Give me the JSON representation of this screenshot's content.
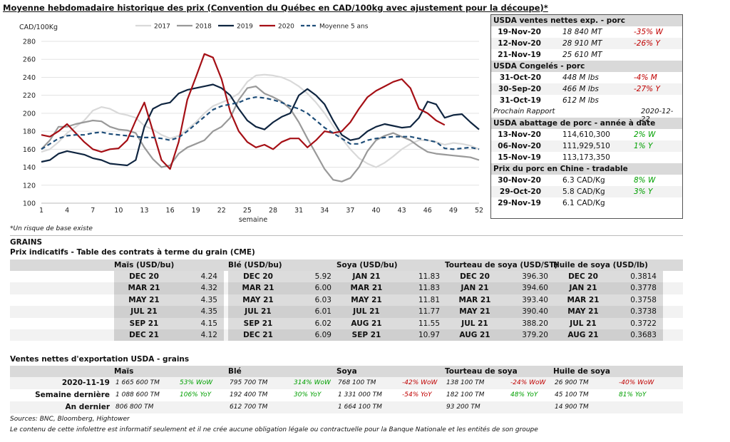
{
  "title": "Moyenne hebdomadaire historique des prix (Convention du Québec en CAD/100kg avec ajustement pour la découpe)*",
  "footnote": "*Un risque de base existe",
  "chart_data": {
    "type": "line",
    "ylabel": "CAD/100Kg",
    "xlabel": "semaine",
    "ylim": [
      100,
      280
    ],
    "yticks": [
      100,
      120,
      140,
      160,
      180,
      200,
      220,
      240,
      260,
      280
    ],
    "xlim": [
      1,
      52
    ],
    "xticks": [
      1,
      4,
      7,
      10,
      13,
      16,
      19,
      22,
      25,
      28,
      31,
      34,
      37,
      40,
      43,
      46,
      49,
      52
    ],
    "legend": "top",
    "grid": "horizontal",
    "series": [
      {
        "name": "2017",
        "color": "#d9d9d9",
        "dash": false,
        "x": [
          1,
          2,
          3,
          4,
          5,
          6,
          7,
          8,
          9,
          10,
          11,
          12,
          13,
          14,
          15,
          16,
          17,
          18,
          19,
          20,
          21,
          22,
          23,
          24,
          25,
          26,
          27,
          28,
          29,
          30,
          31,
          32,
          33,
          34,
          35,
          36,
          37,
          38,
          39,
          40,
          41,
          42,
          43,
          44,
          45,
          46,
          47,
          48,
          49,
          50,
          51,
          52
        ],
        "values": [
          157,
          160,
          168,
          178,
          185,
          192,
          203,
          207,
          205,
          200,
          198,
          195,
          186,
          182,
          176,
          172,
          175,
          182,
          190,
          200,
          208,
          212,
          216,
          222,
          235,
          242,
          243,
          242,
          240,
          236,
          230,
          222,
          212,
          200,
          186,
          172,
          160,
          150,
          144,
          140,
          145,
          152,
          160,
          166,
          170,
          170,
          168,
          165,
          167,
          166,
          164,
          160
        ]
      },
      {
        "name": "2018",
        "color": "#999999",
        "dash": false,
        "x": [
          1,
          2,
          3,
          4,
          5,
          6,
          7,
          8,
          9,
          10,
          11,
          12,
          13,
          14,
          15,
          16,
          17,
          18,
          19,
          20,
          21,
          22,
          23,
          24,
          25,
          26,
          27,
          28,
          29,
          30,
          31,
          32,
          33,
          34,
          35,
          36,
          37,
          38,
          39,
          40,
          41,
          42,
          43,
          44,
          45,
          46,
          47,
          48,
          49,
          50,
          51,
          52
        ],
        "values": [
          160,
          170,
          185,
          185,
          188,
          190,
          192,
          191,
          185,
          182,
          181,
          178,
          162,
          149,
          140,
          142,
          155,
          162,
          166,
          170,
          180,
          185,
          195,
          215,
          228,
          230,
          222,
          218,
          213,
          205,
          190,
          172,
          155,
          138,
          126,
          124,
          128,
          140,
          158,
          170,
          175,
          178,
          174,
          170,
          163,
          157,
          155,
          154,
          153,
          152,
          151,
          148
        ]
      },
      {
        "name": "2019",
        "color": "#0f2540",
        "dash": false,
        "x": [
          1,
          2,
          3,
          4,
          5,
          6,
          7,
          8,
          9,
          10,
          11,
          12,
          13,
          14,
          15,
          16,
          17,
          18,
          19,
          20,
          21,
          22,
          23,
          24,
          25,
          26,
          27,
          28,
          29,
          30,
          31,
          32,
          33,
          34,
          35,
          36,
          37,
          38,
          39,
          40,
          41,
          42,
          43,
          44,
          45,
          46,
          47,
          48,
          49,
          50,
          51,
          52
        ],
        "values": [
          146,
          148,
          155,
          158,
          156,
          154,
          150,
          148,
          144,
          143,
          142,
          148,
          185,
          205,
          210,
          212,
          222,
          226,
          228,
          230,
          232,
          228,
          220,
          205,
          192,
          185,
          182,
          190,
          196,
          200,
          220,
          227,
          220,
          210,
          192,
          176,
          170,
          172,
          180,
          185,
          188,
          186,
          184,
          185,
          195,
          213,
          210,
          195,
          198,
          199,
          190,
          182
        ]
      },
      {
        "name": "2020",
        "color": "#a50f15",
        "dash": false,
        "x": [
          1,
          2,
          3,
          4,
          5,
          6,
          7,
          8,
          9,
          10,
          11,
          12,
          13,
          14,
          15,
          16,
          17,
          18,
          19,
          20,
          21,
          22,
          23,
          24,
          25,
          26,
          27,
          28,
          29,
          30,
          31,
          32,
          33,
          34,
          35,
          36,
          37,
          38,
          39,
          40,
          41,
          42,
          43,
          44,
          45,
          46,
          47,
          48
        ],
        "values": [
          176,
          174,
          180,
          188,
          178,
          168,
          160,
          157,
          160,
          161,
          170,
          192,
          212,
          180,
          148,
          138,
          168,
          215,
          240,
          266,
          262,
          238,
          202,
          180,
          168,
          162,
          165,
          160,
          168,
          172,
          172,
          162,
          170,
          180,
          178,
          180,
          190,
          205,
          218,
          225,
          230,
          235,
          238,
          228,
          205,
          200,
          192,
          187
        ]
      },
      {
        "name": "Moyenne 5 ans",
        "color": "#1f4e79",
        "dash": true,
        "x": [
          1,
          2,
          3,
          4,
          5,
          6,
          7,
          8,
          9,
          10,
          11,
          12,
          13,
          14,
          15,
          16,
          17,
          18,
          19,
          20,
          21,
          22,
          23,
          24,
          25,
          26,
          27,
          28,
          29,
          30,
          31,
          32,
          33,
          34,
          35,
          36,
          37,
          38,
          39,
          40,
          41,
          42,
          43,
          44,
          45,
          46,
          47,
          48,
          49,
          50,
          51,
          52
        ],
        "values": [
          160,
          166,
          172,
          175,
          176,
          176,
          178,
          179,
          177,
          176,
          175,
          174,
          173,
          173,
          172,
          170,
          173,
          180,
          188,
          196,
          204,
          208,
          210,
          212,
          216,
          218,
          217,
          215,
          212,
          208,
          205,
          200,
          192,
          184,
          178,
          172,
          166,
          166,
          170,
          172,
          173,
          174,
          174,
          174,
          172,
          170,
          168,
          161,
          160,
          161,
          162,
          160
        ]
      }
    ]
  },
  "panel": {
    "s1": {
      "title": "USDA ventes nettes exp. - porc",
      "rows": [
        {
          "date": "19-Nov-20",
          "value": "18 840  MT",
          "change": "-35% W",
          "sign": "neg"
        },
        {
          "date": "12-Nov-20",
          "value": "28 910  MT",
          "change": "-26% Y",
          "sign": "neg"
        },
        {
          "date": "21-Nov-19",
          "value": "25 610  MT",
          "change": "",
          "sign": ""
        }
      ]
    },
    "s2": {
      "title": "USDA Congelés - porc",
      "rows": [
        {
          "date": "31-Oct-20",
          "value": "448 M lbs",
          "change": "-4% M",
          "sign": "neg"
        },
        {
          "date": "30-Sep-20",
          "value": "466 M lbs",
          "change": "-27% Y",
          "sign": "neg"
        },
        {
          "date": "31-Oct-19",
          "value": "612 M lbs",
          "change": "",
          "sign": ""
        }
      ]
    },
    "note": {
      "label": "Prochain Rapport",
      "date": "2020-12-22"
    },
    "s3": {
      "title": "USDA abattage de porc - année à date",
      "rows": [
        {
          "date": "13-Nov-20",
          "value": "114,610,300",
          "change": "2% W",
          "sign": "pos"
        },
        {
          "date": "06-Nov-20",
          "value": "111,929,510",
          "change": "1% Y",
          "sign": "pos"
        },
        {
          "date": "15-Nov-19",
          "value": "113,173,350",
          "change": "",
          "sign": ""
        }
      ]
    },
    "s4": {
      "title": "Prix du porc en Chine - tradable",
      "rows": [
        {
          "date": "30-Nov-20",
          "value": "6.3 CAD/Kg",
          "change": "8% W",
          "sign": "pos"
        },
        {
          "date": "29-Oct-20",
          "value": "5.8 CAD/Kg",
          "change": "3% Y",
          "sign": "pos"
        },
        {
          "date": "29-Nov-19",
          "value": "6.1 CAD/Kg",
          "change": "",
          "sign": ""
        }
      ]
    }
  },
  "grains": {
    "section": "GRAINS",
    "futures_title": "Prix indicatifs - Table des contrats à terme du grain (CME)",
    "headers": [
      "Maïs (USD/bu)",
      "Blé (USD/bu)",
      "Soya (USD/bu)",
      "Tourteau de soya (USD/ST)",
      "Huile de soya (USD/lb)"
    ],
    "rows": [
      [
        [
          "DEC 20",
          "4.24"
        ],
        [
          "DEC 20",
          "5.92"
        ],
        [
          "JAN 21",
          "11.83"
        ],
        [
          "DEC 20",
          "396.30"
        ],
        [
          "DEC 20",
          "0.3814"
        ]
      ],
      [
        [
          "MAR 21",
          "4.32"
        ],
        [
          "MAR 21",
          "6.00"
        ],
        [
          "MAR 21",
          "11.83"
        ],
        [
          "JAN 21",
          "394.60"
        ],
        [
          "JAN 21",
          "0.3778"
        ]
      ],
      [
        [
          "MAY 21",
          "4.35"
        ],
        [
          "MAY 21",
          "6.03"
        ],
        [
          "MAY 21",
          "11.81"
        ],
        [
          "MAR 21",
          "393.40"
        ],
        [
          "MAR 21",
          "0.3758"
        ]
      ],
      [
        [
          "JUL 21",
          "4.35"
        ],
        [
          "JUL 21",
          "6.01"
        ],
        [
          "JUL 21",
          "11.77"
        ],
        [
          "MAY 21",
          "390.40"
        ],
        [
          "MAY 21",
          "0.3738"
        ]
      ],
      [
        [
          "SEP 21",
          "4.15"
        ],
        [
          "SEP 21",
          "6.02"
        ],
        [
          "AUG 21",
          "11.55"
        ],
        [
          "JUL 21",
          "388.20"
        ],
        [
          "JUL 21",
          "0.3722"
        ]
      ],
      [
        [
          "DEC 21",
          "4.12"
        ],
        [
          "DEC 21",
          "6.09"
        ],
        [
          "SEP 21",
          "10.97"
        ],
        [
          "AUG 21",
          "379.20"
        ],
        [
          "AUG 21",
          "0.3683"
        ]
      ]
    ],
    "exports_title": "Ventes nettes d'exportation USDA - grains",
    "exports_headers": [
      "Maïs",
      "Blé",
      "Soya",
      "Tourteau de soya",
      "Huile de soya"
    ],
    "exports_rows": [
      {
        "label": "2020-11-19",
        "cells": [
          [
            "1 665 600 TM",
            "53% WoW",
            "pos"
          ],
          [
            "795 700 TM",
            "314% WoW",
            "pos"
          ],
          [
            "768 100 TM",
            "-42% WoW",
            "neg"
          ],
          [
            "138 100 TM",
            "-24% WoW",
            "neg"
          ],
          [
            "26 900 TM",
            "-40% WoW",
            "neg"
          ]
        ]
      },
      {
        "label": "Semaine dernière",
        "cells": [
          [
            "1 088 600 TM",
            "106% YoY",
            "pos"
          ],
          [
            "192 400 TM",
            "30% YoY",
            "pos"
          ],
          [
            "1 331 000 TM",
            "-54% YoY",
            "neg"
          ],
          [
            "182 100 TM",
            "48% YoY",
            "pos"
          ],
          [
            "45 100 TM",
            "81% YoY",
            "pos"
          ]
        ]
      },
      {
        "label": "An dernier",
        "cells": [
          [
            "806 800 TM",
            "",
            ""
          ],
          [
            "612 700 TM",
            "",
            ""
          ],
          [
            "1 664 100 TM",
            "",
            ""
          ],
          [
            "93 200 TM",
            "",
            ""
          ],
          [
            "14 900 TM",
            "",
            ""
          ]
        ]
      }
    ]
  },
  "sources": "Sources: BNC, Bloomberg, Hightower",
  "disclaimer": "Le contenu de cette infolettre est informatif seulement et il ne crée aucune obligation légale ou contractuelle pour la Banque Nationale et les entités de son groupe"
}
